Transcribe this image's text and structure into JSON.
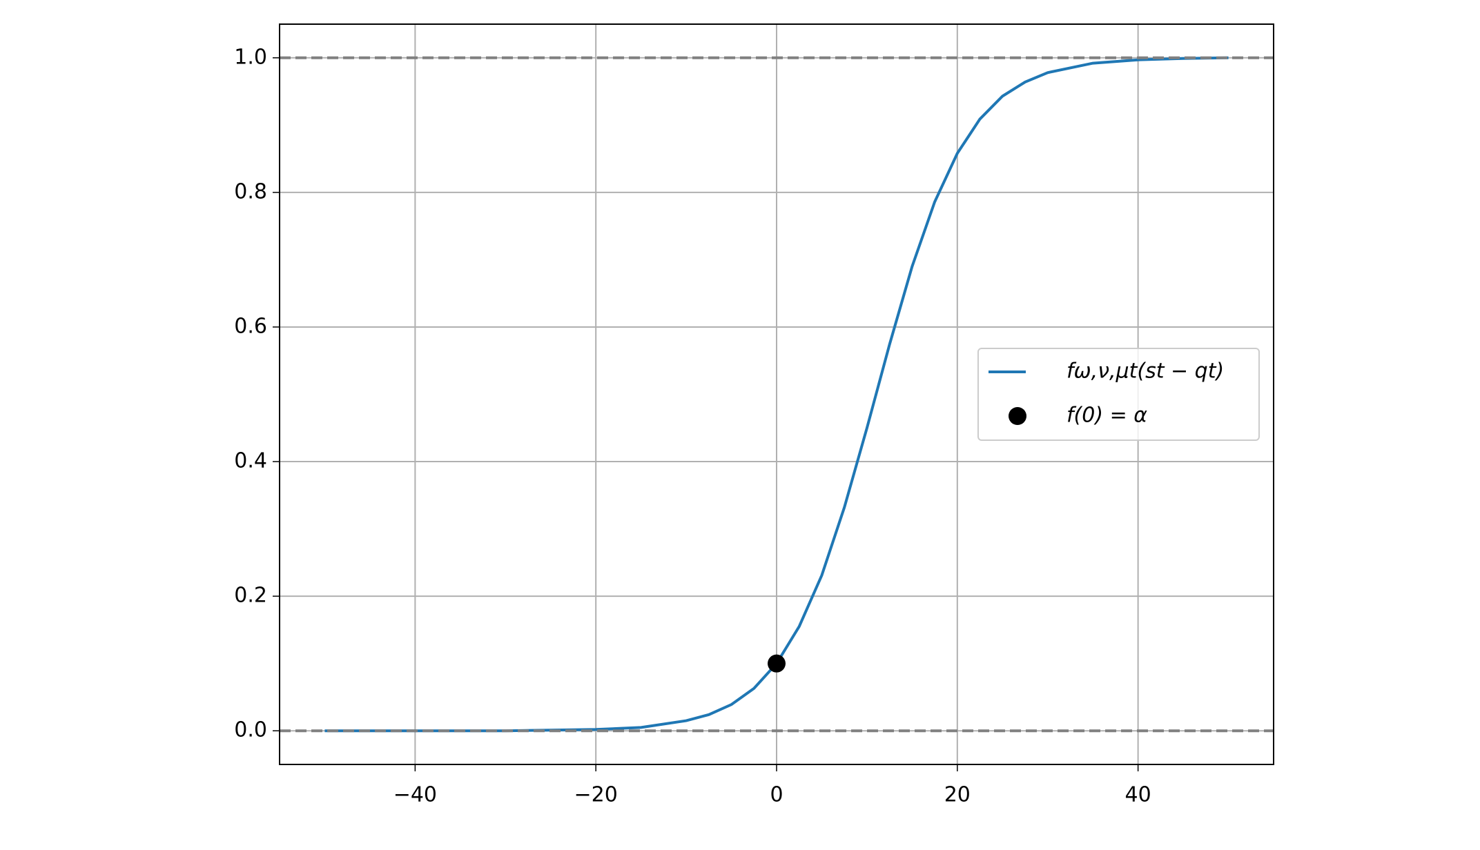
{
  "chart_data": {
    "type": "line",
    "xlim": [
      -55,
      55
    ],
    "ylim": [
      -0.05,
      1.05
    ],
    "xticks": [
      {
        "value": -40,
        "label": "−40"
      },
      {
        "value": -20,
        "label": "−20"
      },
      0,
      20,
      40
    ],
    "yticks": [
      {
        "value": 0,
        "label": "0.0"
      },
      0.2,
      0.4,
      0.6,
      0.8,
      {
        "value": 1,
        "label": "1.0"
      }
    ],
    "grid": true,
    "legend": "right",
    "hlines": [
      0,
      1
    ],
    "hline_color": "#808080",
    "series": [
      {
        "name": "fω,ν,μt(st − qt)",
        "color": "#1f77b4",
        "style": "line",
        "x": [
          -50,
          -45,
          -40,
          -35,
          -30,
          -25,
          -20,
          -15,
          -10,
          -7.5,
          -5,
          -2.5,
          0,
          2.5,
          5,
          7.5,
          10,
          12.5,
          15,
          17.5,
          20,
          22.5,
          25,
          27.5,
          30,
          35,
          40,
          45,
          50
        ],
        "values": [
          0.0,
          0.0,
          0.0,
          0.0,
          0.0,
          0.001,
          0.002,
          0.005,
          0.015,
          0.024,
          0.039,
          0.063,
          0.1,
          0.155,
          0.231,
          0.332,
          0.45,
          0.574,
          0.69,
          0.786,
          0.858,
          0.909,
          0.943,
          0.964,
          0.978,
          0.992,
          0.997,
          0.999,
          1.0
        ]
      },
      {
        "name": "f(0) = α",
        "color": "#000000",
        "style": "marker",
        "x": [
          0
        ],
        "values": [
          0.1
        ]
      }
    ]
  }
}
